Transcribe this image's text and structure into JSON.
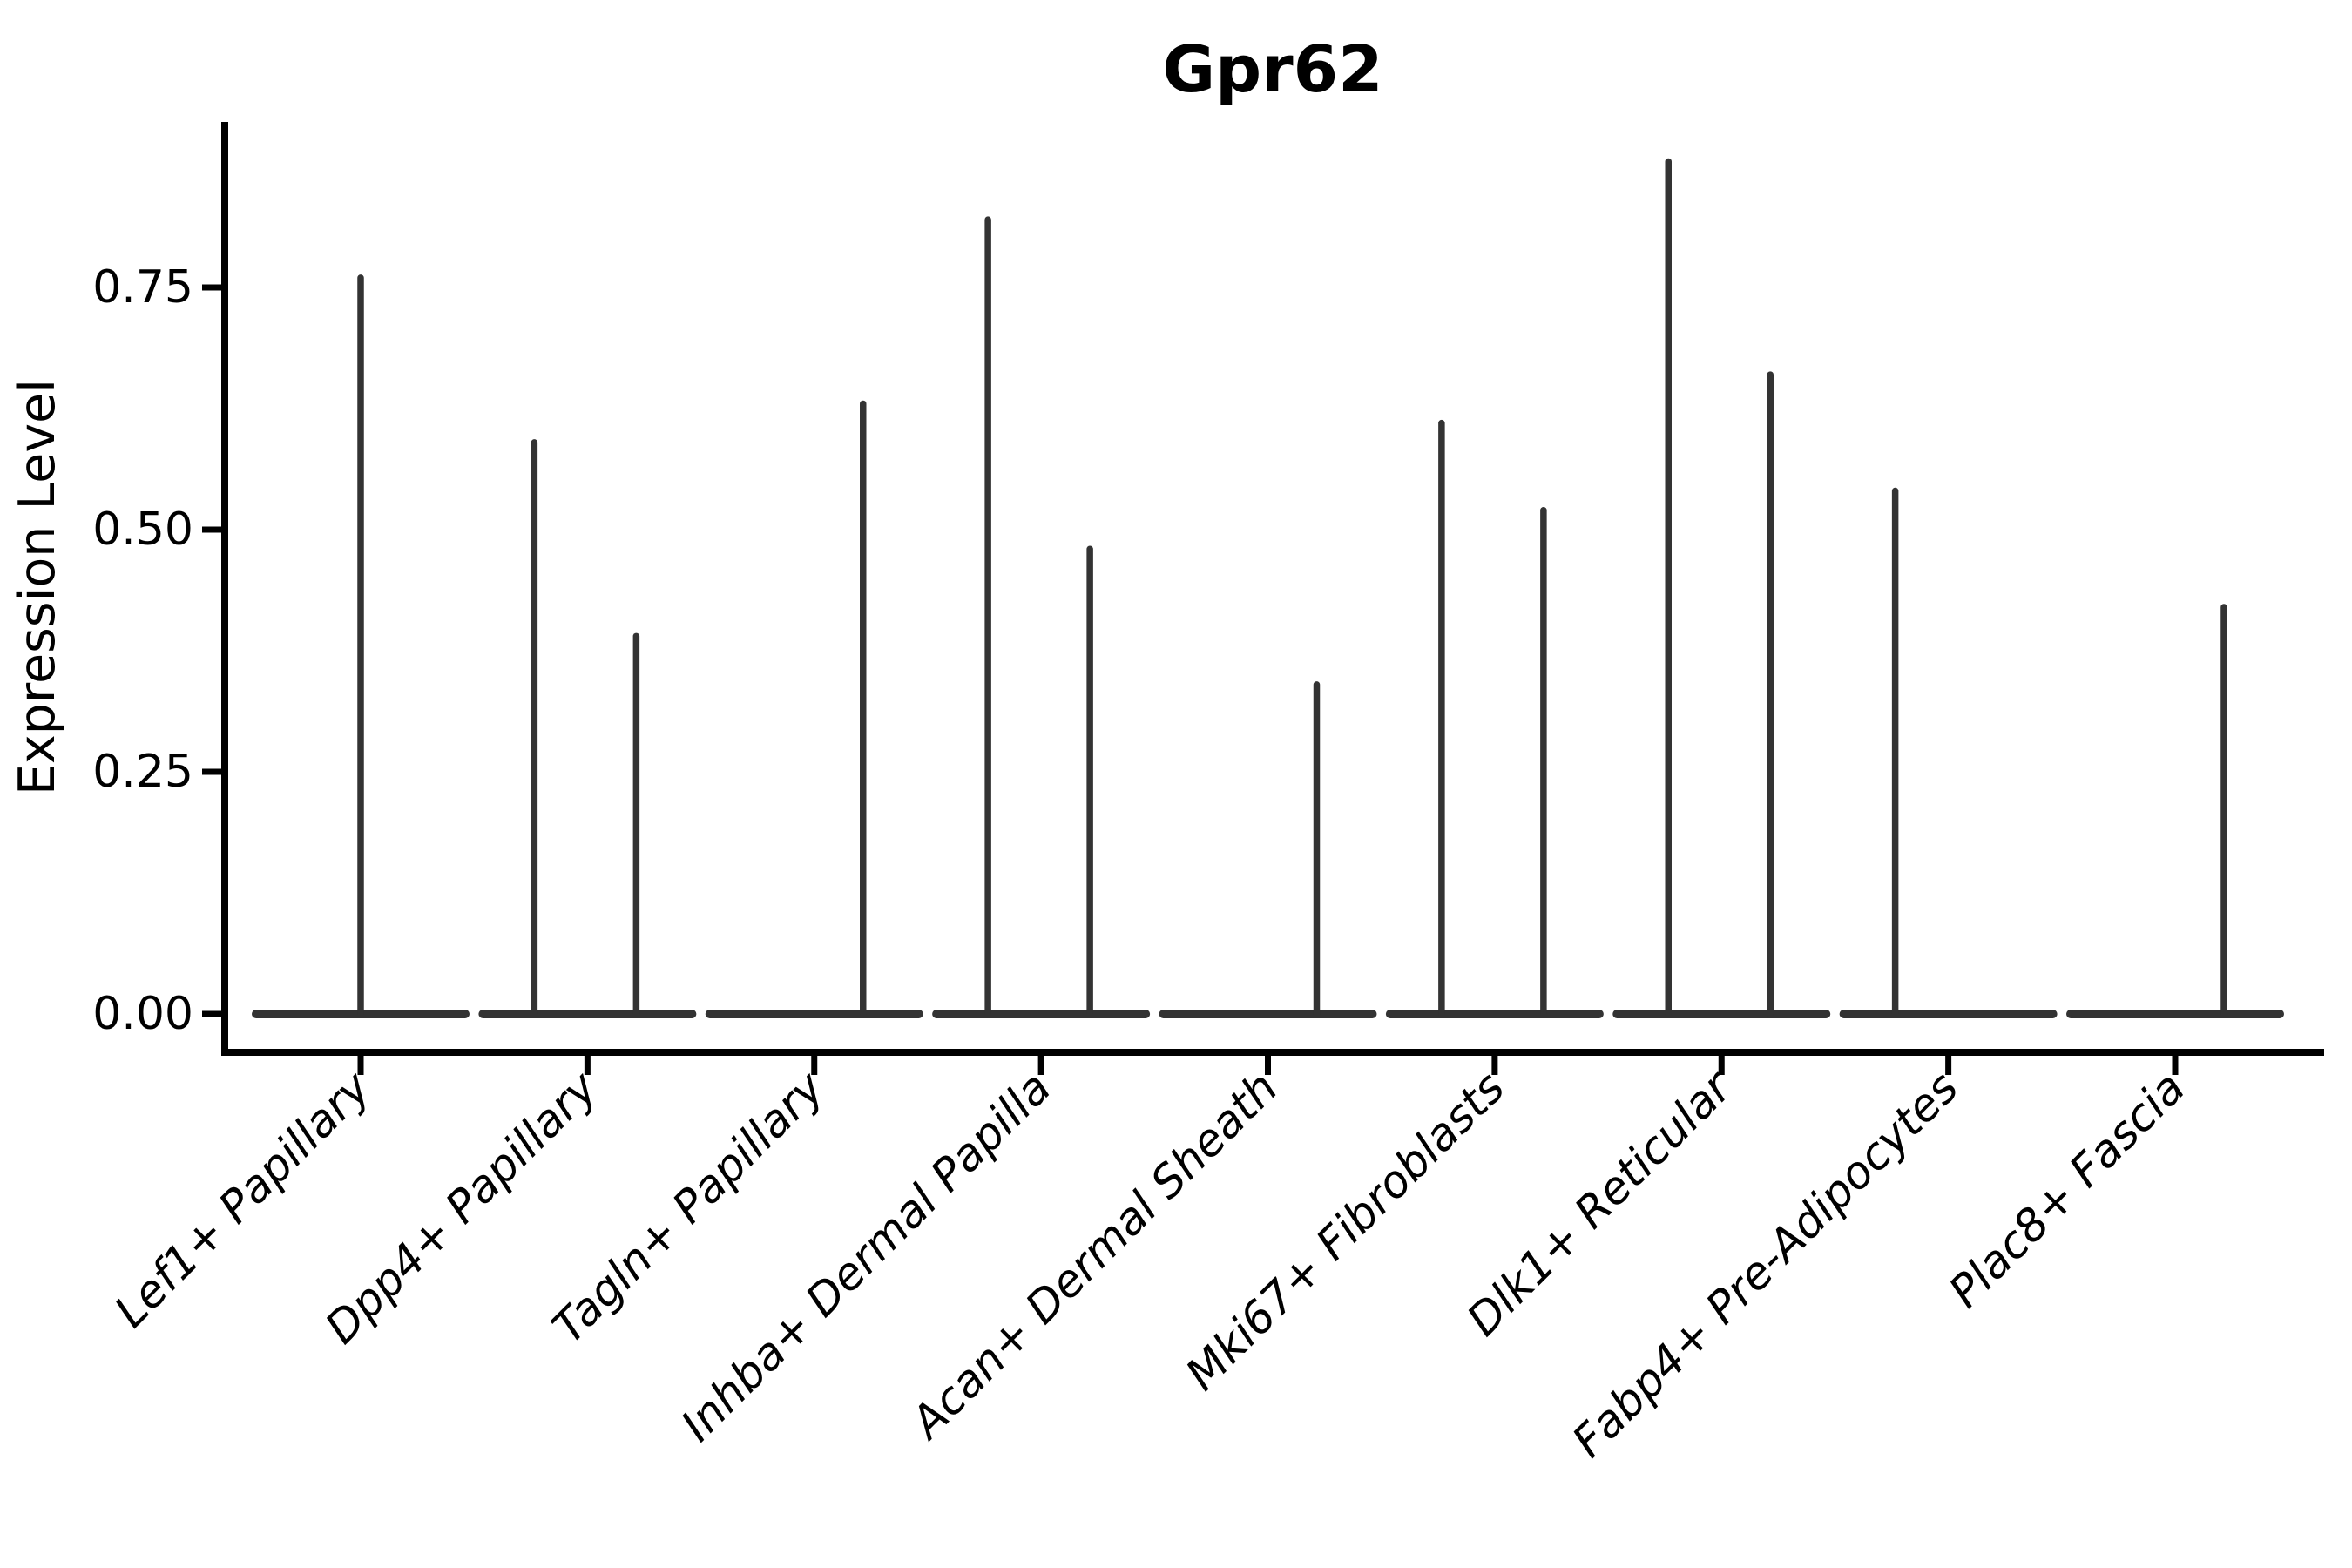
{
  "chart_data": {
    "type": "violin",
    "title": "Gpr62",
    "ylabel": "Expression Level",
    "xlabel": "",
    "grid": false,
    "legend": "none",
    "background": "#ffffff",
    "colors": {
      "violin": "#333333",
      "axis": "#000000",
      "text": "#000000"
    },
    "ylim": [
      -0.04,
      0.92
    ],
    "y_ticks": {
      "values": [
        0.0,
        0.25,
        0.5,
        0.75
      ],
      "labels": [
        "0.00",
        "0.25",
        "0.50",
        "0.75"
      ]
    },
    "categories": [
      "Lef1+ Papillary",
      "Dpp4+ Papillary",
      "Tagln+ Papillary",
      "Inhba+ Dermal Papilla",
      "Acan+ Dermal Sheath",
      "Mki67+ Fibroblasts",
      "Dlk1+ Reticular",
      "Fabp4+ Pre-Adipocytes",
      "Plac8+ Fascia"
    ],
    "violins": [
      {
        "category": "Lef1+ Papillary",
        "base_value": 0.0,
        "spikes": [
          {
            "pos": "center",
            "value": 0.76
          }
        ]
      },
      {
        "category": "Dpp4+ Papillary",
        "base_value": 0.0,
        "spikes": [
          {
            "pos": "left",
            "value": 0.59
          },
          {
            "pos": "right",
            "value": 0.39
          }
        ]
      },
      {
        "category": "Tagln+ Papillary",
        "base_value": 0.0,
        "spikes": [
          {
            "pos": "right",
            "value": 0.63
          }
        ]
      },
      {
        "category": "Inhba+ Dermal Papilla",
        "base_value": 0.0,
        "spikes": [
          {
            "pos": "left",
            "value": 0.82
          },
          {
            "pos": "right",
            "value": 0.48
          }
        ]
      },
      {
        "category": "Acan+ Dermal Sheath",
        "base_value": 0.0,
        "spikes": [
          {
            "pos": "right",
            "value": 0.34
          }
        ]
      },
      {
        "category": "Mki67+ Fibroblasts",
        "base_value": 0.0,
        "spikes": [
          {
            "pos": "left",
            "value": 0.61
          },
          {
            "pos": "right",
            "value": 0.52
          }
        ]
      },
      {
        "category": "Dlk1+ Reticular",
        "base_value": 0.0,
        "spikes": [
          {
            "pos": "left",
            "value": 0.88
          },
          {
            "pos": "right",
            "value": 0.66
          }
        ]
      },
      {
        "category": "Fabp4+ Pre-Adipocytes",
        "base_value": 0.0,
        "spikes": [
          {
            "pos": "left",
            "value": 0.54
          }
        ]
      },
      {
        "category": "Plac8+ Fascia",
        "base_value": 0.0,
        "spikes": [
          {
            "pos": "right",
            "value": 0.42
          }
        ]
      }
    ]
  }
}
